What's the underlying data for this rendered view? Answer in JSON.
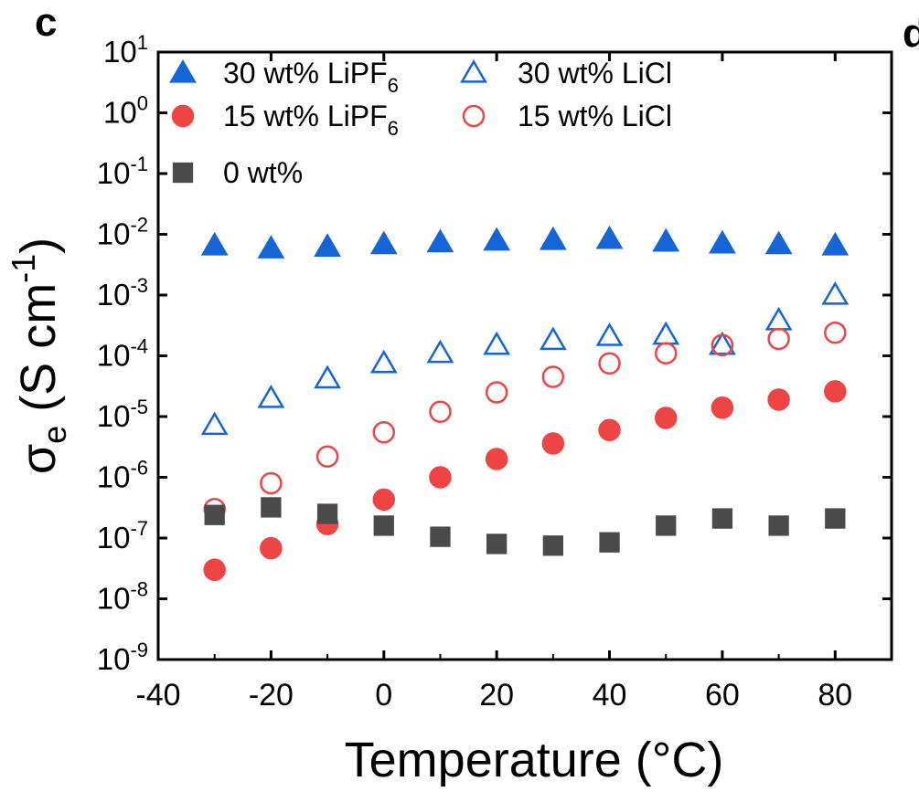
{
  "panel_labels": {
    "left": "c",
    "right": "d"
  },
  "chart_data": {
    "type": "scatter",
    "xlabel": "Temperature (°C)",
    "ylabel": {
      "base": "σ",
      "sub": "e",
      "unit_prefix": "(S cm",
      "unit_exp": "-1",
      "unit_suffix": ")"
    },
    "xlim": [
      -40,
      90
    ],
    "ylim": [
      1e-09,
      10
    ],
    "yscale": "log",
    "xticks": [
      -40,
      -20,
      0,
      20,
      40,
      60,
      80
    ],
    "yticks": [
      {
        "base": "10",
        "exp": "1",
        "value": 10.0
      },
      {
        "base": "10",
        "exp": "0",
        "value": 1.0
      },
      {
        "base": "10",
        "exp": "-1",
        "value": 0.1
      },
      {
        "base": "10",
        "exp": "-2",
        "value": 0.01
      },
      {
        "base": "10",
        "exp": "-3",
        "value": 0.001
      },
      {
        "base": "10",
        "exp": "-4",
        "value": 0.0001
      },
      {
        "base": "10",
        "exp": "-5",
        "value": 1e-05
      },
      {
        "base": "10",
        "exp": "-6",
        "value": 1e-06
      },
      {
        "base": "10",
        "exp": "-7",
        "value": 1e-07
      },
      {
        "base": "10",
        "exp": "-8",
        "value": 1e-08
      },
      {
        "base": "10",
        "exp": "-9",
        "value": 1e-09
      }
    ],
    "grid": false,
    "legend_position": "top-left",
    "series": [
      {
        "name": "30 wt% LiPF",
        "name_sub": "6",
        "marker": "triangle",
        "filled": true,
        "color": "#1565d8",
        "x": [
          -30,
          -20,
          -10,
          0,
          10,
          20,
          30,
          40,
          50,
          60,
          70,
          80
        ],
        "y": [
          0.0065,
          0.0058,
          0.0062,
          0.0068,
          0.0073,
          0.0078,
          0.008,
          0.0083,
          0.0075,
          0.007,
          0.0068,
          0.0065
        ]
      },
      {
        "name": "30 wt% LiCl",
        "name_sub": "",
        "marker": "triangle",
        "filled": false,
        "color": "#1565d8",
        "x": [
          -30,
          -20,
          -10,
          0,
          10,
          20,
          30,
          40,
          50,
          60,
          70,
          80
        ],
        "y": [
          7.2e-06,
          2e-05,
          4.2e-05,
          7.5e-05,
          0.00011,
          0.00015,
          0.00018,
          0.00021,
          0.00022,
          0.00015,
          0.00038,
          0.001
        ]
      },
      {
        "name": "15 wt% LiPF",
        "name_sub": "6",
        "marker": "circle",
        "filled": true,
        "color": "#ef4444",
        "x": [
          -30,
          -20,
          -10,
          0,
          10,
          20,
          30,
          40,
          50,
          60,
          70,
          80
        ],
        "y": [
          3e-08,
          6.8e-08,
          1.7e-07,
          4.3e-07,
          1e-06,
          2e-06,
          3.6e-06,
          6e-06,
          9.5e-06,
          1.4e-05,
          1.9e-05,
          2.6e-05
        ]
      },
      {
        "name": "15 wt% LiCl",
        "name_sub": "",
        "marker": "circle",
        "filled": false,
        "color": "#ef4444",
        "x": [
          -30,
          -20,
          -10,
          0,
          10,
          20,
          30,
          40,
          50,
          60,
          70,
          80
        ],
        "y": [
          3e-07,
          8e-07,
          2.2e-06,
          5.5e-06,
          1.2e-05,
          2.5e-05,
          4.5e-05,
          7.5e-05,
          0.00011,
          0.00015,
          0.00019,
          0.00024
        ]
      },
      {
        "name": "0 wt%",
        "name_sub": "",
        "marker": "square",
        "filled": true,
        "color": "#4a4a4a",
        "x": [
          -30,
          -20,
          -10,
          0,
          10,
          20,
          30,
          40,
          50,
          60,
          70,
          80
        ],
        "y": [
          2.4e-07,
          3.2e-07,
          2.5e-07,
          1.6e-07,
          1.05e-07,
          8e-08,
          7.5e-08,
          8.5e-08,
          1.6e-07,
          2.1e-07,
          1.6e-07,
          2.1e-07
        ]
      }
    ]
  }
}
